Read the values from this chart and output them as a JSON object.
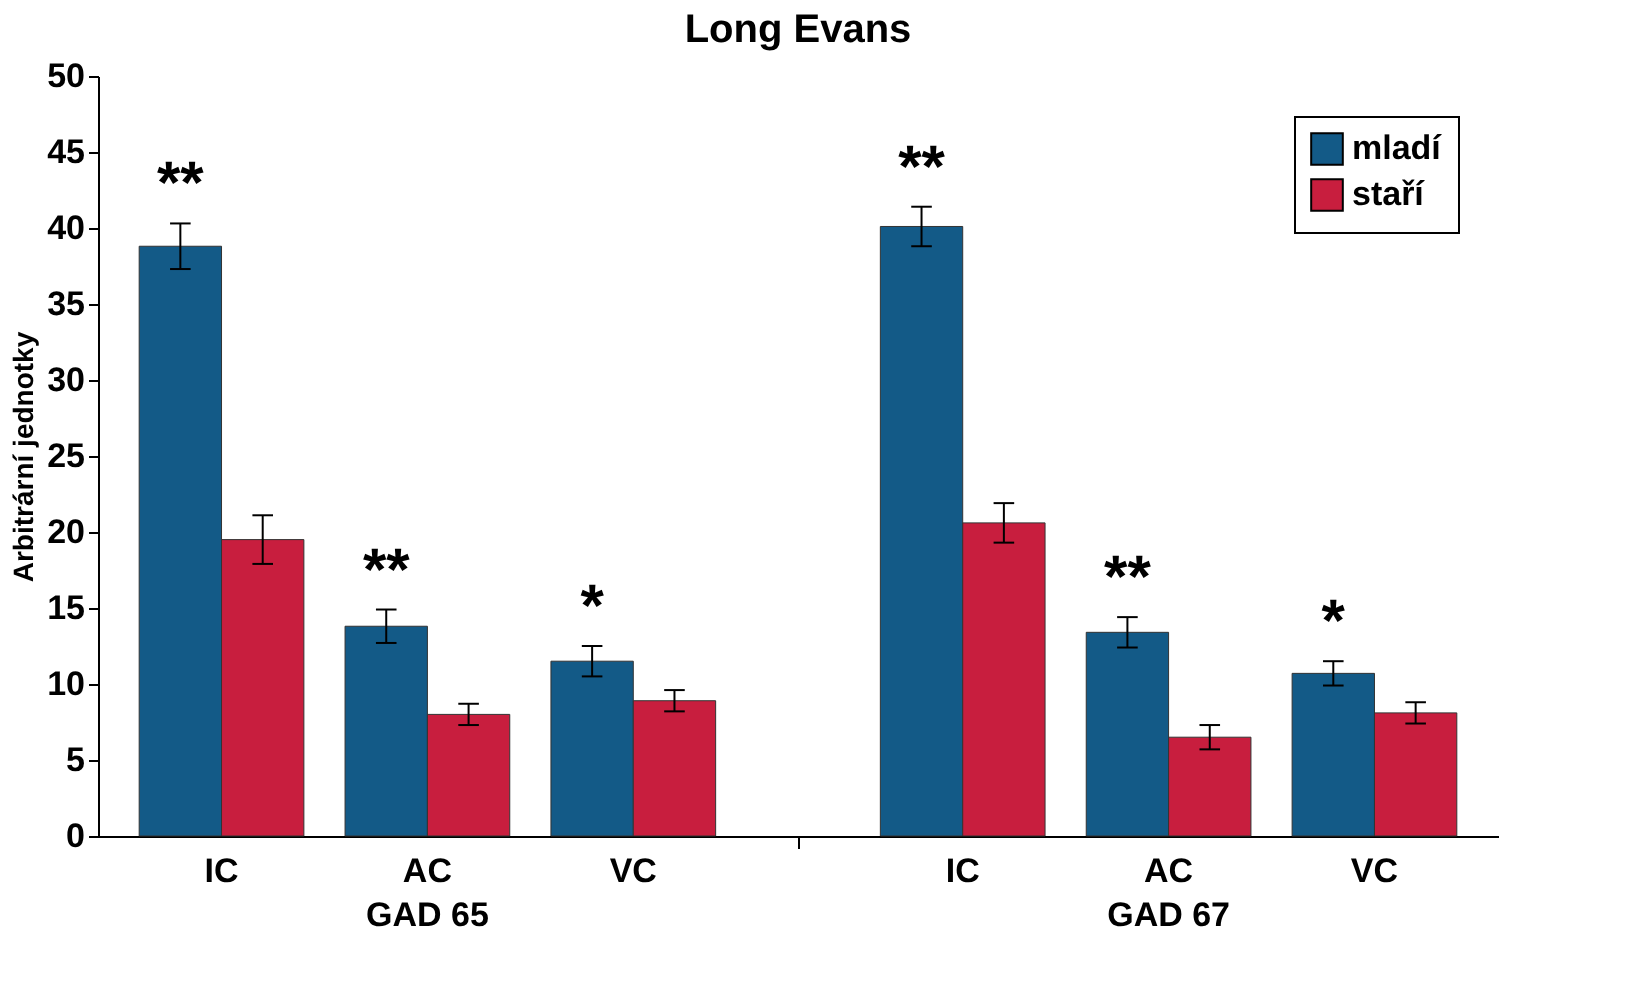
{
  "chart_data": {
    "type": "bar",
    "title": "Long Evans",
    "ylabel": "Arbitrární jednotky",
    "categories": [
      "IC",
      "AC",
      "VC",
      "IC",
      "AC",
      "VC"
    ],
    "series": [
      {
        "name": "mladí",
        "color": "#135a87",
        "values": [
          38.8,
          13.8,
          11.5,
          40.1,
          13.4,
          10.7
        ],
        "errors": [
          1.5,
          1.1,
          1.0,
          1.3,
          1.0,
          0.8
        ]
      },
      {
        "name": "staří",
        "color": "#c81e3e",
        "values": [
          19.5,
          8.0,
          8.9,
          20.6,
          6.5,
          8.1
        ],
        "errors": [
          1.6,
          0.7,
          0.7,
          1.3,
          0.8,
          0.7
        ]
      }
    ],
    "annotations": [
      "**",
      "**",
      "*",
      "**",
      "**",
      "*",
      "GAD 65",
      "GAD 67"
    ],
    "ylim": [
      0,
      50
    ],
    "yticks": [
      0,
      5,
      10,
      15,
      20,
      25,
      30,
      35,
      40,
      45,
      50
    ],
    "grid": false,
    "legend": "top right"
  }
}
